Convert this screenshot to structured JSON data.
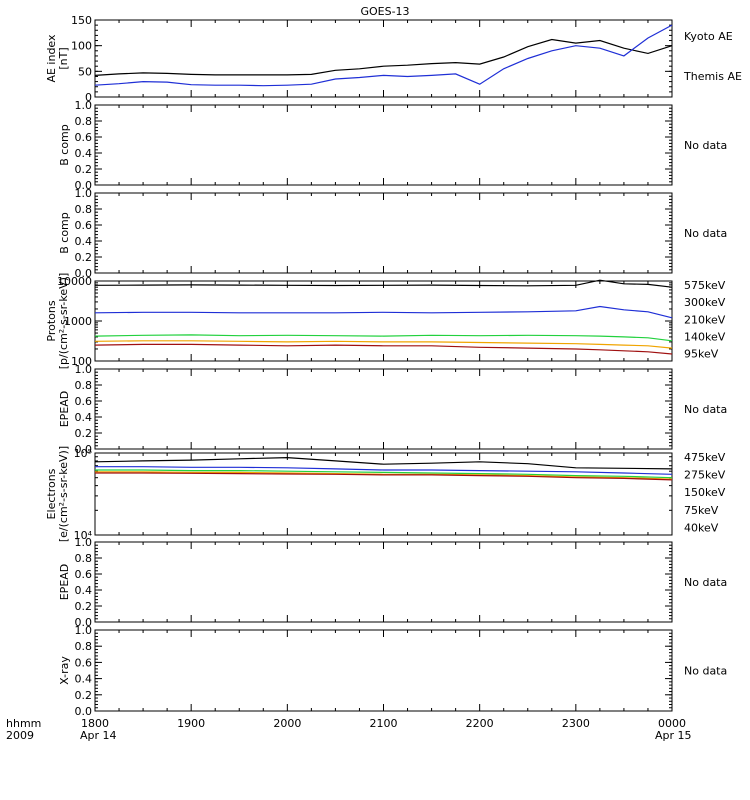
{
  "title": "GOES-13",
  "x_axis": {
    "corner_top": "hhmm",
    "corner_bottom": "2009",
    "ticks": [
      "1800",
      "1900",
      "2000",
      "2100",
      "2200",
      "2300",
      "0000"
    ],
    "date_left": "Apr 14",
    "date_right": "Apr 15"
  },
  "colors": {
    "black": "#000000",
    "blue": "#1f2fd6",
    "green": "#22d13e",
    "orange": "#f0a400",
    "darkred": "#a01010"
  },
  "chart_data": [
    {
      "type": "line",
      "id": "ae",
      "ylabel_lines": [
        "AE index",
        "[nT]"
      ],
      "yticks": [
        {
          "v": 0,
          "t": "0"
        },
        {
          "v": 50,
          "t": "50"
        },
        {
          "v": 100,
          "t": "100"
        },
        {
          "v": 150,
          "t": "150"
        }
      ],
      "ylim": [
        0,
        150
      ],
      "yscale": "linear",
      "x": [
        18.0,
        18.25,
        18.5,
        18.75,
        19.0,
        19.25,
        19.5,
        19.75,
        20.0,
        20.25,
        20.5,
        20.75,
        21.0,
        21.25,
        21.5,
        21.75,
        22.0,
        22.25,
        22.5,
        22.75,
        23.0,
        23.25,
        23.5,
        23.75,
        24.0
      ],
      "series": [
        {
          "name": "Themis AE",
          "color": "black",
          "values": [
            42,
            45,
            47,
            46,
            44,
            43,
            43,
            43,
            43,
            44,
            52,
            55,
            60,
            62,
            65,
            67,
            64,
            78,
            98,
            112,
            105,
            110,
            95,
            85,
            100
          ]
        },
        {
          "name": "Kyoto AE",
          "color": "blue",
          "values": [
            23,
            26,
            30,
            29,
            24,
            23,
            23,
            22,
            23,
            25,
            35,
            38,
            42,
            40,
            42,
            45,
            25,
            55,
            75,
            90,
            100,
            95,
            80,
            115,
            140
          ]
        }
      ],
      "legend": [
        "Kyoto AE",
        "Themis AE"
      ]
    },
    {
      "type": "line",
      "id": "b1",
      "ylabel_lines": [
        "B comp"
      ],
      "yticks": [
        {
          "v": 0,
          "t": "0.0"
        },
        {
          "v": 0.2,
          "t": "0.2"
        },
        {
          "v": 0.4,
          "t": "0.4"
        },
        {
          "v": 0.6,
          "t": "0.6"
        },
        {
          "v": 0.8,
          "t": "0.8"
        },
        {
          "v": 1.0,
          "t": "1.0"
        }
      ],
      "ylim": [
        0,
        1
      ],
      "yscale": "linear",
      "series": [],
      "no_data": "No data"
    },
    {
      "type": "line",
      "id": "b2",
      "ylabel_lines": [
        "B comp"
      ],
      "yticks": [
        {
          "v": 0,
          "t": "0.0"
        },
        {
          "v": 0.2,
          "t": "0.2"
        },
        {
          "v": 0.4,
          "t": "0.4"
        },
        {
          "v": 0.6,
          "t": "0.6"
        },
        {
          "v": 0.8,
          "t": "0.8"
        },
        {
          "v": 1.0,
          "t": "1.0"
        }
      ],
      "ylim": [
        0,
        1
      ],
      "yscale": "linear",
      "series": [],
      "no_data": "No data"
    },
    {
      "type": "line",
      "id": "protons",
      "ylabel_lines": [
        "Protons",
        "[p/(cm²-s-sr-keV)]"
      ],
      "yticks": [
        {
          "v": 100,
          "t": "100"
        },
        {
          "v": 1000,
          "t": "1000"
        },
        {
          "v": 10000,
          "t": "10000"
        }
      ],
      "ylim": [
        100,
        10000
      ],
      "yscale": "log",
      "x": [
        18.0,
        18.5,
        19.0,
        19.5,
        20.0,
        20.5,
        21.0,
        21.5,
        22.0,
        22.5,
        23.0,
        23.25,
        23.5,
        23.75,
        24.0
      ],
      "series": [
        {
          "name": "95keV",
          "color": "black",
          "values": [
            7800,
            7900,
            8000,
            7900,
            7800,
            7700,
            7800,
            7900,
            7700,
            7600,
            7800,
            10500,
            8500,
            8200,
            7000
          ]
        },
        {
          "name": "140keV",
          "color": "blue",
          "values": [
            1600,
            1650,
            1650,
            1600,
            1600,
            1600,
            1650,
            1600,
            1650,
            1700,
            1800,
            2300,
            1900,
            1700,
            1200
          ]
        },
        {
          "name": "210keV",
          "color": "green",
          "values": [
            420,
            440,
            450,
            430,
            440,
            430,
            420,
            440,
            430,
            440,
            430,
            420,
            400,
            380,
            320
          ]
        },
        {
          "name": "300keV",
          "color": "orange",
          "values": [
            310,
            320,
            320,
            310,
            300,
            310,
            300,
            300,
            290,
            280,
            270,
            260,
            250,
            240,
            210
          ]
        },
        {
          "name": "575keV",
          "color": "darkred",
          "values": [
            250,
            260,
            260,
            250,
            240,
            250,
            240,
            240,
            220,
            210,
            200,
            190,
            180,
            170,
            150
          ]
        }
      ],
      "legend": [
        "575keV",
        "300keV",
        "210keV",
        "140keV",
        "95keV"
      ]
    },
    {
      "type": "line",
      "id": "epead1",
      "ylabel_lines": [
        "EPEAD"
      ],
      "yticks": [
        {
          "v": 0,
          "t": "0.0"
        },
        {
          "v": 0.2,
          "t": "0.2"
        },
        {
          "v": 0.4,
          "t": "0.4"
        },
        {
          "v": 0.6,
          "t": "0.6"
        },
        {
          "v": 0.8,
          "t": "0.8"
        },
        {
          "v": 1.0,
          "t": "1.0"
        }
      ],
      "ylim": [
        0,
        1
      ],
      "yscale": "linear",
      "series": [],
      "no_data": "No data"
    },
    {
      "type": "line",
      "id": "electrons",
      "ylabel_lines": [
        "Electrons",
        "[e/(cm²-s-sr-keV)]"
      ],
      "yticks": [
        {
          "v": 10000,
          "t": "10⁴"
        },
        {
          "v": 100000,
          "t": "10⁵"
        }
      ],
      "ylim": [
        10000,
        100000
      ],
      "yscale": "log",
      "x": [
        18.0,
        18.5,
        19.0,
        19.5,
        20.0,
        20.5,
        21.0,
        21.5,
        22.0,
        22.5,
        23.0,
        23.5,
        24.0
      ],
      "series": [
        {
          "name": "40keV",
          "color": "black",
          "values": [
            78000,
            80000,
            82000,
            85000,
            88000,
            80000,
            73000,
            75000,
            78000,
            74000,
            66000,
            65000,
            64000
          ]
        },
        {
          "name": "75keV",
          "color": "blue",
          "values": [
            68000,
            68000,
            67000,
            67000,
            66000,
            64000,
            62000,
            62000,
            61000,
            60000,
            59000,
            57000,
            55000
          ]
        },
        {
          "name": "150keV",
          "color": "green",
          "values": [
            62000,
            62000,
            61000,
            61000,
            60000,
            59000,
            58000,
            57000,
            56000,
            55000,
            53000,
            52000,
            50000
          ]
        },
        {
          "name": "275keV",
          "color": "orange",
          "values": [
            59000,
            59000,
            58000,
            58000,
            57000,
            56000,
            55000,
            55000,
            54000,
            53000,
            51000,
            50000,
            48000
          ]
        },
        {
          "name": "475keV",
          "color": "darkred",
          "values": [
            57000,
            57000,
            56500,
            56000,
            55500,
            55000,
            54000,
            54000,
            53000,
            52000,
            50000,
            49000,
            47000
          ]
        }
      ],
      "legend": [
        "475keV",
        "275keV",
        "150keV",
        "75keV",
        "40keV"
      ]
    },
    {
      "type": "line",
      "id": "epead2",
      "ylabel_lines": [
        "EPEAD"
      ],
      "yticks": [
        {
          "v": 0,
          "t": "0.0"
        },
        {
          "v": 0.2,
          "t": "0.2"
        },
        {
          "v": 0.4,
          "t": "0.4"
        },
        {
          "v": 0.6,
          "t": "0.6"
        },
        {
          "v": 0.8,
          "t": "0.8"
        },
        {
          "v": 1.0,
          "t": "1.0"
        }
      ],
      "ylim": [
        0,
        1
      ],
      "yscale": "linear",
      "series": [],
      "no_data": "No data"
    },
    {
      "type": "line",
      "id": "xray",
      "ylabel_lines": [
        "X-ray"
      ],
      "yticks": [
        {
          "v": 0,
          "t": "0.0"
        },
        {
          "v": 0.2,
          "t": "0.2"
        },
        {
          "v": 0.4,
          "t": "0.4"
        },
        {
          "v": 0.6,
          "t": "0.6"
        },
        {
          "v": 0.8,
          "t": "0.8"
        },
        {
          "v": 1.0,
          "t": "1.0"
        }
      ],
      "ylim": [
        0,
        1
      ],
      "yscale": "linear",
      "series": [],
      "no_data": "No data"
    }
  ]
}
